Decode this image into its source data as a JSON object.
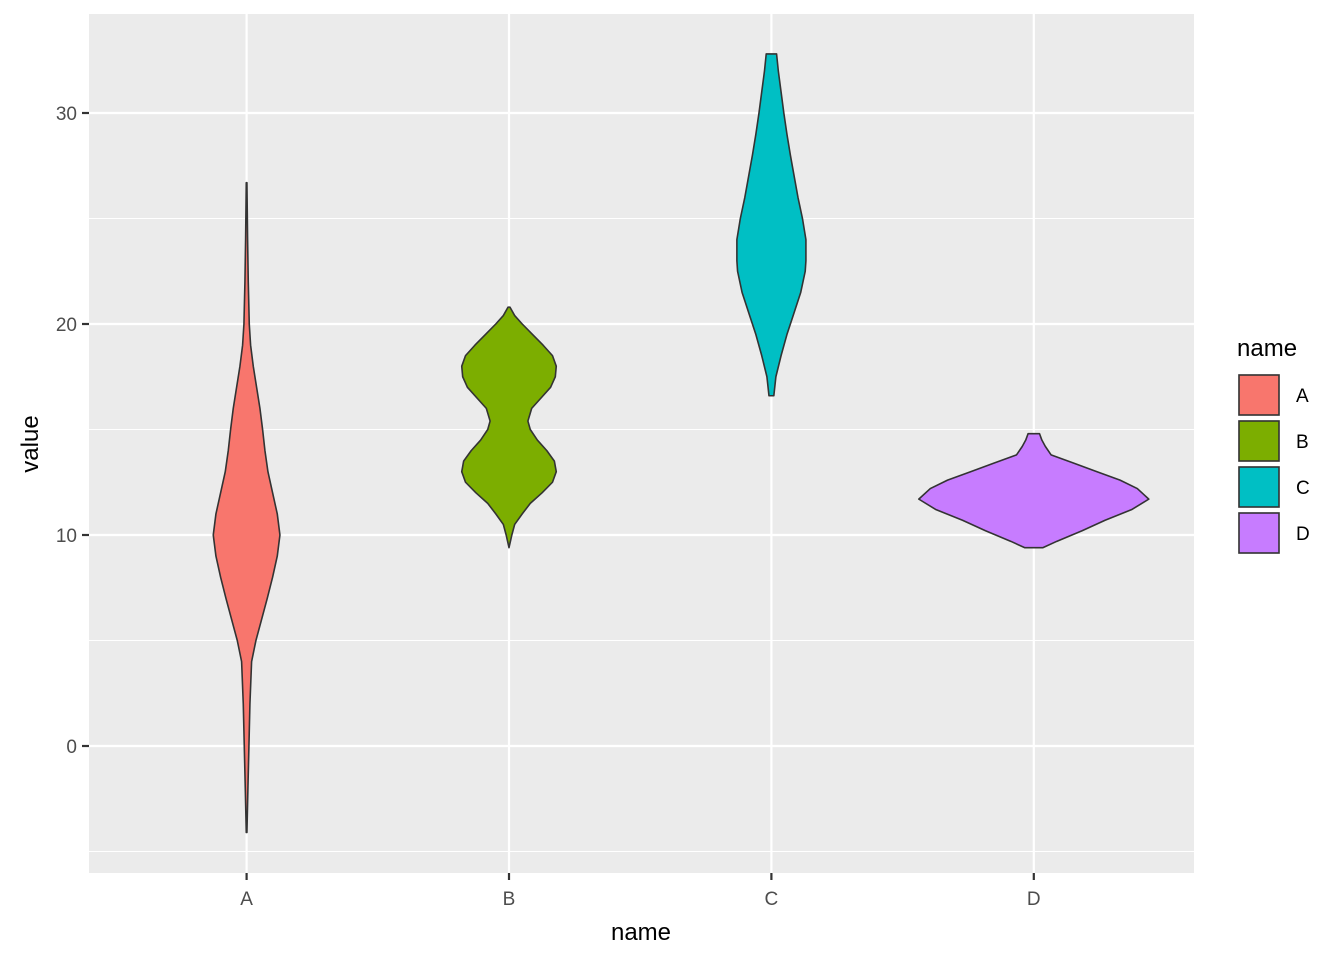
{
  "chart_data": {
    "type": "violin",
    "xlabel": "name",
    "ylabel": "value",
    "categories": [
      "A",
      "B",
      "C",
      "D"
    ],
    "yticks": [
      0,
      10,
      20,
      30
    ],
    "ylim": [
      -6,
      35
    ],
    "grid": true,
    "legend": {
      "title": "name",
      "placement": "right",
      "entries": [
        "A",
        "B",
        "C",
        "D"
      ]
    },
    "series": [
      {
        "name": "A",
        "color": "#F8766D",
        "range": [
          -4.1,
          26.7
        ],
        "density_profile": [
          [
            -4.1,
            0.01
          ],
          [
            -2.0,
            0.04
          ],
          [
            0.0,
            0.07
          ],
          [
            2.0,
            0.1
          ],
          [
            4.0,
            0.15
          ],
          [
            5.0,
            0.28
          ],
          [
            6.0,
            0.45
          ],
          [
            7.0,
            0.62
          ],
          [
            8.0,
            0.78
          ],
          [
            9.0,
            0.92
          ],
          [
            10.0,
            1.0
          ],
          [
            11.0,
            0.92
          ],
          [
            12.0,
            0.78
          ],
          [
            13.0,
            0.64
          ],
          [
            14.0,
            0.55
          ],
          [
            15.0,
            0.48
          ],
          [
            16.0,
            0.4
          ],
          [
            17.0,
            0.3
          ],
          [
            18.0,
            0.2
          ],
          [
            19.0,
            0.12
          ],
          [
            20.0,
            0.08
          ],
          [
            22.0,
            0.05
          ],
          [
            24.0,
            0.03
          ],
          [
            26.7,
            0.01
          ]
        ]
      },
      {
        "name": "B",
        "color": "#7CAE00",
        "range": [
          9.4,
          20.8
        ],
        "density_profile": [
          [
            9.4,
            0.0
          ],
          [
            10.0,
            0.06
          ],
          [
            10.5,
            0.12
          ],
          [
            11.0,
            0.28
          ],
          [
            11.5,
            0.45
          ],
          [
            12.0,
            0.7
          ],
          [
            12.5,
            0.92
          ],
          [
            13.0,
            1.0
          ],
          [
            13.5,
            0.96
          ],
          [
            14.0,
            0.8
          ],
          [
            14.5,
            0.6
          ],
          [
            15.0,
            0.45
          ],
          [
            15.4,
            0.4
          ],
          [
            16.0,
            0.48
          ],
          [
            16.5,
            0.68
          ],
          [
            17.0,
            0.88
          ],
          [
            17.5,
            0.98
          ],
          [
            18.0,
            1.0
          ],
          [
            18.5,
            0.92
          ],
          [
            19.0,
            0.72
          ],
          [
            19.5,
            0.5
          ],
          [
            20.0,
            0.28
          ],
          [
            20.4,
            0.12
          ],
          [
            20.8,
            0.02
          ]
        ]
      },
      {
        "name": "C",
        "color": "#00BFC4",
        "range": [
          16.6,
          32.8
        ],
        "density_profile": [
          [
            16.6,
            0.07
          ],
          [
            17.5,
            0.13
          ],
          [
            18.5,
            0.28
          ],
          [
            19.5,
            0.45
          ],
          [
            20.5,
            0.65
          ],
          [
            21.5,
            0.85
          ],
          [
            22.5,
            0.98
          ],
          [
            23.0,
            1.0
          ],
          [
            24.0,
            1.0
          ],
          [
            25.0,
            0.9
          ],
          [
            26.0,
            0.77
          ],
          [
            27.0,
            0.66
          ],
          [
            28.0,
            0.55
          ],
          [
            29.0,
            0.45
          ],
          [
            30.0,
            0.36
          ],
          [
            31.0,
            0.28
          ],
          [
            32.0,
            0.2
          ],
          [
            32.8,
            0.15
          ]
        ]
      },
      {
        "name": "D",
        "color": "#C77CFF",
        "range": [
          9.4,
          14.8
        ],
        "density_profile": [
          [
            9.4,
            0.08
          ],
          [
            9.7,
            0.2
          ],
          [
            10.2,
            0.42
          ],
          [
            10.7,
            0.62
          ],
          [
            11.2,
            0.85
          ],
          [
            11.7,
            1.0
          ],
          [
            12.2,
            0.9
          ],
          [
            12.6,
            0.75
          ],
          [
            13.0,
            0.55
          ],
          [
            13.4,
            0.35
          ],
          [
            13.8,
            0.15
          ],
          [
            14.2,
            0.1
          ],
          [
            14.5,
            0.07
          ],
          [
            14.8,
            0.05
          ]
        ]
      }
    ]
  }
}
